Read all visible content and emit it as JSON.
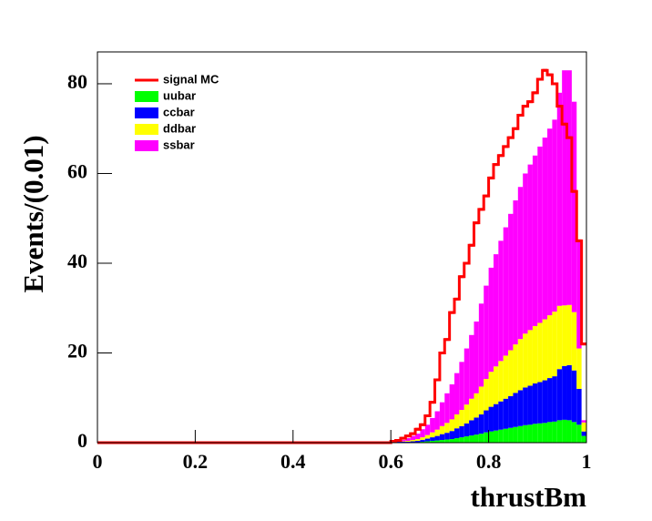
{
  "chart_data": {
    "type": "histogram",
    "xlabel": "thrustBm",
    "ylabel": "Events/(0.01)",
    "xlim": [
      0,
      1
    ],
    "ylim": [
      0,
      87.1
    ],
    "xticks": [
      0,
      0.2,
      0.4,
      0.6,
      0.8,
      1
    ],
    "yticks": [
      0,
      20,
      40,
      60,
      80
    ],
    "legend": "upper-left",
    "bins": [
      0,
      0.01,
      0.02,
      0.03,
      0.04,
      0.05,
      0.06,
      0.07,
      0.08,
      0.09,
      0.1,
      0.11,
      0.12,
      0.13,
      0.14,
      0.15,
      0.16,
      0.17,
      0.18,
      0.19,
      0.2,
      0.21,
      0.22,
      0.23,
      0.24,
      0.25,
      0.26,
      0.27,
      0.28,
      0.29,
      0.3,
      0.31,
      0.32,
      0.33,
      0.34,
      0.35,
      0.36,
      0.37,
      0.38,
      0.39,
      0.4,
      0.41,
      0.42,
      0.43,
      0.44,
      0.45,
      0.46,
      0.47,
      0.48,
      0.49,
      0.5,
      0.51,
      0.52,
      0.53,
      0.54,
      0.55,
      0.56,
      0.57,
      0.58,
      0.59,
      0.6,
      0.61,
      0.62,
      0.63,
      0.64,
      0.65,
      0.66,
      0.67,
      0.68,
      0.69,
      0.7,
      0.71,
      0.72,
      0.73,
      0.74,
      0.75,
      0.76,
      0.77,
      0.78,
      0.79,
      0.8,
      0.81,
      0.82,
      0.83,
      0.84,
      0.85,
      0.86,
      0.87,
      0.88,
      0.89,
      0.9,
      0.91,
      0.92,
      0.93,
      0.94,
      0.95,
      0.96,
      0.97,
      0.98,
      0.99,
      1
    ],
    "series": [
      {
        "name": "signal MC",
        "color": "#ff0000",
        "style": "line",
        "values": [
          0,
          0,
          0,
          0,
          0,
          0,
          0,
          0,
          0,
          0,
          0,
          0,
          0,
          0,
          0,
          0,
          0,
          0,
          0,
          0,
          0,
          0,
          0,
          0,
          0,
          0,
          0,
          0,
          0,
          0,
          0,
          0,
          0,
          0,
          0,
          0,
          0,
          0,
          0,
          0,
          0,
          0,
          0,
          0,
          0,
          0,
          0,
          0,
          0,
          0,
          0,
          0,
          0,
          0,
          0,
          0,
          0,
          0,
          0,
          0,
          0.3,
          0.5,
          1,
          1.5,
          2,
          3,
          4,
          6,
          9,
          14,
          20,
          23,
          29,
          32,
          37,
          40,
          44,
          49,
          52,
          55,
          59,
          62,
          64,
          66,
          68,
          70,
          73,
          75,
          76,
          78,
          81,
          83,
          82,
          80,
          75,
          71,
          68,
          56,
          45,
          22
        ]
      },
      {
        "name": "uubar",
        "color": "#00ff00",
        "style": "fill",
        "values": [
          0,
          0,
          0,
          0,
          0,
          0,
          0,
          0,
          0,
          0,
          0,
          0,
          0,
          0,
          0,
          0,
          0,
          0,
          0,
          0,
          0,
          0,
          0,
          0,
          0,
          0,
          0,
          0,
          0,
          0,
          0,
          0,
          0,
          0,
          0,
          0,
          0,
          0,
          0,
          0,
          0,
          0,
          0,
          0,
          0,
          0,
          0,
          0,
          0,
          0,
          0,
          0,
          0,
          0,
          0,
          0,
          0,
          0,
          0,
          0,
          0,
          0.1,
          0.1,
          0.1,
          0.1,
          0.1,
          0.2,
          0.3,
          0.4,
          0.5,
          0.6,
          0.7,
          0.8,
          1.0,
          1.2,
          1.4,
          1.6,
          1.8,
          2.0,
          2.3,
          2.5,
          2.7,
          2.9,
          3.1,
          3.3,
          3.5,
          3.7,
          3.9,
          4.0,
          4.2,
          4.3,
          4.4,
          4.6,
          4.7,
          5.0,
          5.1,
          5.0,
          4.6,
          4.0,
          1.5
        ]
      },
      {
        "name": "ccbar",
        "color": "#0000ff",
        "style": "fill",
        "values": [
          0,
          0,
          0,
          0,
          0,
          0,
          0,
          0,
          0,
          0,
          0,
          0,
          0,
          0,
          0,
          0,
          0,
          0,
          0,
          0,
          0,
          0,
          0,
          0,
          0,
          0,
          0,
          0,
          0,
          0,
          0,
          0,
          0,
          0,
          0,
          0,
          0,
          0,
          0,
          0,
          0,
          0,
          0,
          0,
          0,
          0,
          0,
          0,
          0,
          0,
          0,
          0,
          0,
          0,
          0,
          0,
          0,
          0,
          0,
          0,
          0.1,
          0.1,
          0.1,
          0.1,
          0.2,
          0.3,
          0.4,
          0.6,
          0.8,
          1.0,
          1.3,
          1.5,
          1.8,
          2.2,
          2.5,
          2.9,
          3.4,
          3.8,
          4.3,
          4.9,
          5.5,
          5.9,
          6.3,
          6.7,
          7.1,
          7.6,
          8.0,
          8.4,
          8.7,
          9.0,
          9.2,
          9.5,
          9.8,
          10.1,
          11.4,
          12.0,
          12.3,
          11.5,
          8.0,
          1.0
        ]
      },
      {
        "name": "ddbar",
        "color": "#ffff00",
        "style": "fill",
        "values": [
          0,
          0,
          0,
          0,
          0,
          0,
          0,
          0,
          0,
          0,
          0,
          0,
          0,
          0,
          0,
          0,
          0,
          0,
          0,
          0,
          0,
          0,
          0,
          0,
          0,
          0,
          0,
          0,
          0,
          0,
          0,
          0,
          0,
          0,
          0,
          0,
          0,
          0,
          0,
          0,
          0,
          0,
          0,
          0,
          0,
          0,
          0,
          0,
          0,
          0,
          0,
          0,
          0,
          0,
          0,
          0,
          0,
          0,
          0,
          0,
          0,
          0.1,
          0.1,
          0.2,
          0.3,
          0.4,
          0.6,
          0.8,
          1.1,
          1.4,
          1.8,
          2.2,
          2.6,
          3.1,
          3.6,
          4.2,
          4.8,
          5.4,
          6.2,
          7.0,
          7.8,
          8.4,
          9.0,
          9.6,
          10.2,
          10.8,
          11.4,
          12.0,
          12.4,
          12.8,
          13.2,
          13.6,
          14.0,
          14.4,
          14.1,
          13.5,
          13.4,
          13.0,
          9.0,
          2.0
        ]
      },
      {
        "name": "ssbar",
        "color": "#ff00ff",
        "style": "fill",
        "values": [
          0,
          0,
          0,
          0,
          0,
          0,
          0,
          0,
          0,
          0,
          0,
          0,
          0,
          0,
          0,
          0,
          0,
          0,
          0,
          0,
          0,
          0,
          0,
          0,
          0,
          0,
          0,
          0,
          0,
          0,
          0,
          0,
          0,
          0,
          0,
          0,
          0,
          0,
          0,
          0,
          0,
          0,
          0,
          0,
          0,
          0,
          0,
          0,
          0,
          0,
          0,
          0,
          0,
          0,
          0,
          0,
          0,
          0,
          0,
          0,
          0.1,
          0.1,
          0.3,
          0.6,
          0.9,
          1.2,
          1.8,
          2.3,
          3.2,
          4.1,
          5.3,
          6.6,
          7.8,
          9.2,
          10.7,
          12.5,
          14.2,
          16.0,
          18.5,
          20.8,
          23.2,
          25.0,
          26.8,
          28.6,
          30.4,
          32.1,
          33.9,
          35.7,
          36.9,
          38.0,
          39.3,
          40.5,
          41.6,
          42.8,
          47.5,
          52.4,
          52.3,
          46.9,
          24.0,
          0.5
        ]
      }
    ]
  }
}
